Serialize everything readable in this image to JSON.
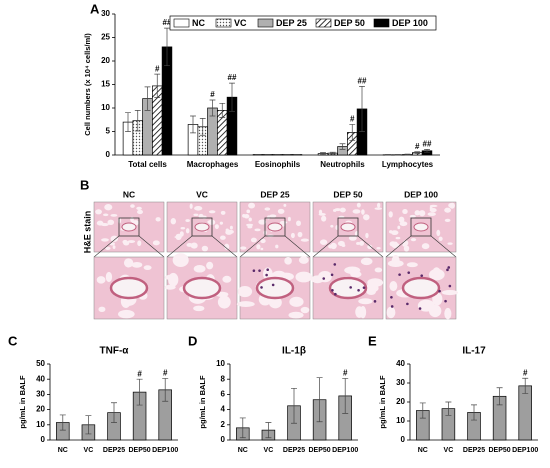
{
  "chart_data": [
    {
      "type": "bar",
      "panel": "A",
      "y_label": "Cell numbers (x 10⁴ cells/ml)",
      "categories": [
        "Total cells",
        "Macrophages",
        "Eosinophils",
        "Neutrophils",
        "Lymphocytes"
      ],
      "ylim": [
        0,
        30
      ],
      "yticks": [
        0,
        5,
        10,
        15,
        20,
        25,
        30
      ],
      "legend": "top-right",
      "series": [
        {
          "name": "NC",
          "color": "#ffffff",
          "pattern": "solid",
          "values": [
            7,
            6.5,
            0.1,
            0.3,
            0.05
          ],
          "errors": [
            2,
            1.8,
            0.05,
            0.2,
            0.05
          ],
          "annotations": [
            null,
            null,
            null,
            null,
            null
          ]
        },
        {
          "name": "VC",
          "color": "#ffffff",
          "pattern": "dots",
          "values": [
            7.3,
            6,
            0.1,
            0.4,
            0.05
          ],
          "errors": [
            2.2,
            1.8,
            0.05,
            0.2,
            0.05
          ],
          "annotations": [
            null,
            null,
            null,
            null,
            null
          ]
        },
        {
          "name": "DEP 25",
          "color": "#b0b0b0",
          "pattern": "solid",
          "values": [
            12,
            10,
            0.1,
            1.8,
            0.1
          ],
          "errors": [
            2.5,
            1.7,
            0.05,
            0.6,
            0.1
          ],
          "annotations": [
            null,
            "#",
            null,
            null,
            null
          ]
        },
        {
          "name": "DEP 50",
          "color": "#ffffff",
          "pattern": "hatch",
          "values": [
            14.7,
            9.5,
            0.1,
            4.8,
            0.5
          ],
          "errors": [
            2.5,
            1.5,
            0.05,
            1.7,
            0.2
          ],
          "annotations": [
            "#",
            null,
            null,
            "#",
            "#"
          ]
        },
        {
          "name": "DEP 100",
          "color": "#000000",
          "pattern": "solid",
          "values": [
            23,
            12.3,
            0.1,
            9.8,
            0.9
          ],
          "errors": [
            4,
            3,
            0.05,
            4.8,
            0.3
          ],
          "annotations": [
            "##",
            "##",
            null,
            "##",
            "##"
          ]
        }
      ]
    },
    {
      "type": "bar",
      "panel": "C",
      "title": "TNF-α",
      "y_label": "pg/mL in BALF",
      "color": "#9e9e9e",
      "categories": [
        "NC",
        "VC",
        "DEP25",
        "DEP50",
        "DEP100"
      ],
      "values": [
        11.5,
        10,
        18,
        31.5,
        33
      ],
      "errors": [
        5,
        6,
        6.5,
        8.5,
        7.5
      ],
      "annotations": [
        null,
        null,
        null,
        "#",
        "#"
      ],
      "ylim": [
        0,
        50
      ],
      "yticks": [
        0,
        10,
        20,
        30,
        40,
        50
      ]
    },
    {
      "type": "bar",
      "panel": "D",
      "title": "IL-1β",
      "y_label": "pg/mL in BALF",
      "color": "#9e9e9e",
      "categories": [
        "NC",
        "VC",
        "DEP25",
        "DEP50",
        "DEP100"
      ],
      "values": [
        1.6,
        1.3,
        4.5,
        5.3,
        5.8
      ],
      "errors": [
        1.3,
        1,
        2.3,
        2.9,
        2.3
      ],
      "annotations": [
        null,
        null,
        null,
        null,
        "#"
      ],
      "ylim": [
        0,
        10
      ],
      "yticks": [
        0,
        2,
        4,
        6,
        8,
        10
      ]
    },
    {
      "type": "bar",
      "panel": "E",
      "title": "IL-17",
      "y_label": "pg/mL in BALF",
      "color": "#9e9e9e",
      "categories": [
        "NC",
        "VC",
        "DEP25",
        "DEP50",
        "DEP100"
      ],
      "values": [
        15.5,
        16.5,
        14.5,
        23,
        28.5
      ],
      "errors": [
        4,
        3.5,
        4,
        4.5,
        4
      ],
      "annotations": [
        null,
        null,
        null,
        null,
        "#"
      ],
      "ylim": [
        0,
        40
      ],
      "yticks": [
        0,
        10,
        20,
        30,
        40
      ]
    }
  ],
  "histology": {
    "panel": "B",
    "row_label": "H&E stain",
    "columns": [
      "NC",
      "VC",
      "DEP 25",
      "DEP 50",
      "DEP 100"
    ]
  }
}
